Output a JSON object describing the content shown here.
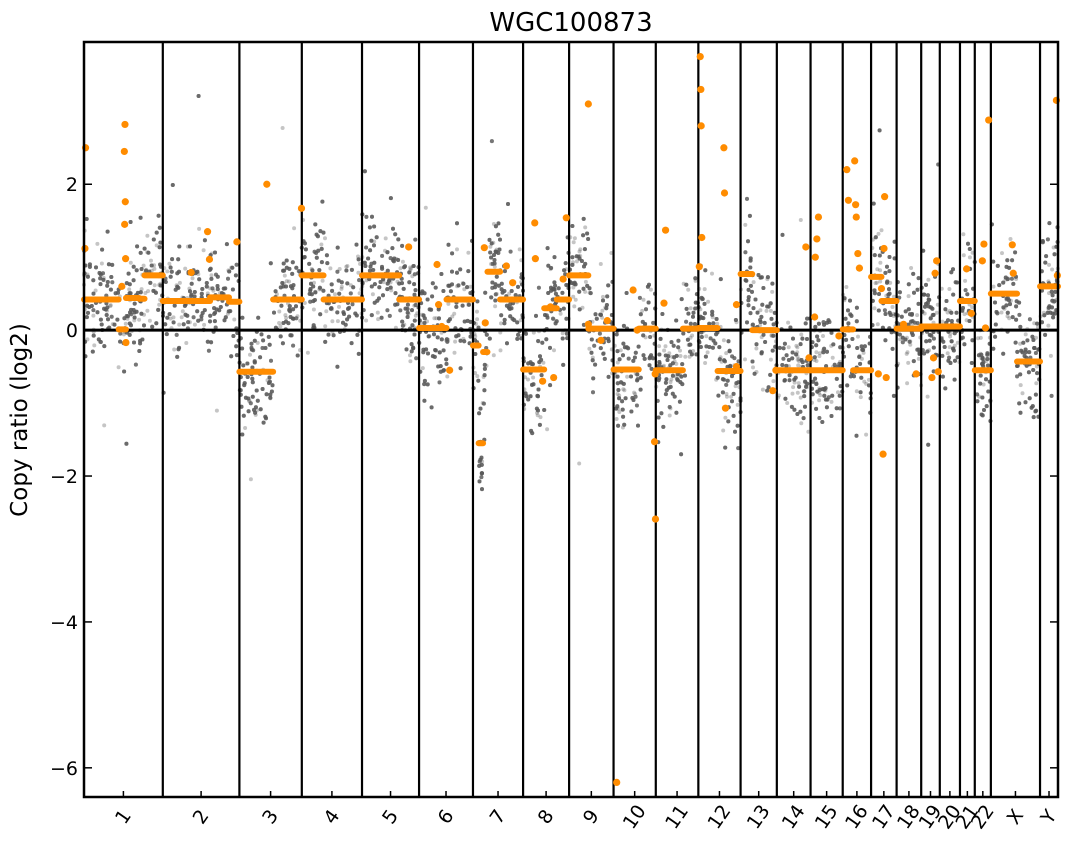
{
  "colors": {
    "bins": "#5a5a5a",
    "segments": "#ff8c00",
    "frame": "#000000",
    "background": "#ffffff"
  },
  "chart_data": {
    "type": "scatter",
    "title": "WGC100873",
    "xlabel": "",
    "ylabel": "Copy ratio (log2)",
    "ylim": [
      -6.4,
      3.95
    ],
    "yticks": [
      2,
      0,
      -2,
      -4,
      -6
    ],
    "ytick_labels": [
      "2",
      "0",
      "−2",
      "−4",
      "−6"
    ],
    "reference_line": 0,
    "chromosomes": [
      {
        "label": "1",
        "start": 0,
        "end": 250
      },
      {
        "label": "2",
        "start": 250,
        "end": 493
      },
      {
        "label": "3",
        "start": 493,
        "end": 691
      },
      {
        "label": "4",
        "start": 691,
        "end": 882
      },
      {
        "label": "5",
        "start": 882,
        "end": 1063
      },
      {
        "label": "6",
        "start": 1063,
        "end": 1234
      },
      {
        "label": "7",
        "start": 1234,
        "end": 1393
      },
      {
        "label": "8",
        "start": 1393,
        "end": 1539
      },
      {
        "label": "9",
        "start": 1539,
        "end": 1680
      },
      {
        "label": "10",
        "start": 1680,
        "end": 1814
      },
      {
        "label": "11",
        "start": 1814,
        "end": 1949
      },
      {
        "label": "12",
        "start": 1949,
        "end": 2083
      },
      {
        "label": "13",
        "start": 2083,
        "end": 2198
      },
      {
        "label": "14",
        "start": 2198,
        "end": 2305
      },
      {
        "label": "15",
        "start": 2305,
        "end": 2407
      },
      {
        "label": "16",
        "start": 2407,
        "end": 2497
      },
      {
        "label": "17",
        "start": 2497,
        "end": 2578
      },
      {
        "label": "18",
        "start": 2578,
        "end": 2656
      },
      {
        "label": "19",
        "start": 2656,
        "end": 2715
      },
      {
        "label": "20",
        "start": 2715,
        "end": 2779
      },
      {
        "label": "21",
        "start": 2779,
        "end": 2826
      },
      {
        "label": "22",
        "start": 2826,
        "end": 2877
      },
      {
        "label": "X",
        "start": 2877,
        "end": 3033
      },
      {
        "label": "Y",
        "start": 3033,
        "end": 3090
      }
    ],
    "series": [
      {
        "name": "",
        "role": "segments",
        "segments": [
          {
            "x0": 0,
            "x1": 110,
            "y": 0.42
          },
          {
            "x0": 110,
            "x1": 133,
            "y": 0.01
          },
          {
            "x0": 133,
            "x1": 175,
            "y": 0.44
          },
          {
            "x0": 175,
            "x1": 192,
            "y": 0.43
          },
          {
            "x0": 192,
            "x1": 250,
            "y": 0.75
          },
          {
            "x0": 250,
            "x1": 400,
            "y": 0.4
          },
          {
            "x0": 400,
            "x1": 460,
            "y": 0.45
          },
          {
            "x0": 460,
            "x1": 493,
            "y": 0.39
          },
          {
            "x0": 493,
            "x1": 600,
            "y": -0.57
          },
          {
            "x0": 600,
            "x1": 691,
            "y": 0.42
          },
          {
            "x0": 691,
            "x1": 760,
            "y": 0.75
          },
          {
            "x0": 760,
            "x1": 882,
            "y": 0.42
          },
          {
            "x0": 882,
            "x1": 1000,
            "y": 0.75
          },
          {
            "x0": 1000,
            "x1": 1063,
            "y": 0.42
          },
          {
            "x0": 1063,
            "x1": 1150,
            "y": 0.03
          },
          {
            "x0": 1150,
            "x1": 1234,
            "y": 0.42
          },
          {
            "x0": 1234,
            "x1": 1252,
            "y": -0.21
          },
          {
            "x0": 1252,
            "x1": 1266,
            "y": -1.55
          },
          {
            "x0": 1266,
            "x1": 1280,
            "y": -0.3
          },
          {
            "x0": 1280,
            "x1": 1320,
            "y": 0.8
          },
          {
            "x0": 1320,
            "x1": 1393,
            "y": 0.42
          },
          {
            "x0": 1393,
            "x1": 1460,
            "y": -0.54
          },
          {
            "x0": 1460,
            "x1": 1500,
            "y": 0.3
          },
          {
            "x0": 1500,
            "x1": 1539,
            "y": 0.42
          },
          {
            "x0": 1539,
            "x1": 1600,
            "y": 0.75
          },
          {
            "x0": 1600,
            "x1": 1680,
            "y": 0.02
          },
          {
            "x0": 1680,
            "x1": 1760,
            "y": -0.54
          },
          {
            "x0": 1760,
            "x1": 1814,
            "y": 0.02
          },
          {
            "x0": 1814,
            "x1": 1900,
            "y": -0.55
          },
          {
            "x0": 1900,
            "x1": 1949,
            "y": 0.02
          },
          {
            "x0": 1949,
            "x1": 2010,
            "y": 0.03
          },
          {
            "x0": 2010,
            "x1": 2083,
            "y": -0.56
          },
          {
            "x0": 2083,
            "x1": 2120,
            "y": 0.77
          },
          {
            "x0": 2120,
            "x1": 2198,
            "y": 0.0
          },
          {
            "x0": 2198,
            "x1": 2305,
            "y": -0.55
          },
          {
            "x0": 2305,
            "x1": 2407,
            "y": -0.55
          },
          {
            "x0": 2407,
            "x1": 2440,
            "y": 0.01
          },
          {
            "x0": 2440,
            "x1": 2497,
            "y": -0.55
          },
          {
            "x0": 2497,
            "x1": 2530,
            "y": 0.73
          },
          {
            "x0": 2530,
            "x1": 2578,
            "y": 0.4
          },
          {
            "x0": 2578,
            "x1": 2656,
            "y": 0.02
          },
          {
            "x0": 2656,
            "x1": 2715,
            "y": 0.05
          },
          {
            "x0": 2715,
            "x1": 2779,
            "y": 0.05
          },
          {
            "x0": 2779,
            "x1": 2826,
            "y": 0.4
          },
          {
            "x0": 2826,
            "x1": 2877,
            "y": -0.55
          },
          {
            "x0": 2877,
            "x1": 2960,
            "y": 0.5
          },
          {
            "x0": 2960,
            "x1": 3033,
            "y": -0.43
          },
          {
            "x0": 3033,
            "x1": 3090,
            "y": 0.6
          }
        ],
        "outliers": [
          {
            "x": 5,
            "y": 2.5
          },
          {
            "x": 3,
            "y": 1.12
          },
          {
            "x": 130,
            "y": 2.82
          },
          {
            "x": 128,
            "y": 2.45
          },
          {
            "x": 131,
            "y": 1.76
          },
          {
            "x": 129,
            "y": 1.45
          },
          {
            "x": 132,
            "y": 0.98
          },
          {
            "x": 120,
            "y": 0.6
          },
          {
            "x": 133,
            "y": -0.17
          },
          {
            "x": 340,
            "y": 0.79
          },
          {
            "x": 392,
            "y": 1.35
          },
          {
            "x": 398,
            "y": 0.97
          },
          {
            "x": 485,
            "y": 1.21
          },
          {
            "x": 580,
            "y": 2.0
          },
          {
            "x": 690,
            "y": 1.67
          },
          {
            "x": 1030,
            "y": 1.14
          },
          {
            "x": 1120,
            "y": 0.9
          },
          {
            "x": 1125,
            "y": 0.35
          },
          {
            "x": 1135,
            "y": 0.05
          },
          {
            "x": 1160,
            "y": -0.55
          },
          {
            "x": 1270,
            "y": 1.13
          },
          {
            "x": 1273,
            "y": 0.1
          },
          {
            "x": 1340,
            "y": 0.88
          },
          {
            "x": 1360,
            "y": 0.65
          },
          {
            "x": 1430,
            "y": 1.47
          },
          {
            "x": 1432,
            "y": 0.98
          },
          {
            "x": 1455,
            "y": -0.7
          },
          {
            "x": 1490,
            "y": -0.65
          },
          {
            "x": 1480,
            "y": 0.32
          },
          {
            "x": 1600,
            "y": 3.1
          },
          {
            "x": 1520,
            "y": 0.7
          },
          {
            "x": 1530,
            "y": 1.54
          },
          {
            "x": 1640,
            "y": -0.14
          },
          {
            "x": 1600,
            "y": 0.08
          },
          {
            "x": 1660,
            "y": 0.13
          },
          {
            "x": 1690,
            "y": -6.2
          },
          {
            "x": 1742,
            "y": 0.55
          },
          {
            "x": 1755,
            "y": 0.0
          },
          {
            "x": 1810,
            "y": -1.53
          },
          {
            "x": 1813,
            "y": -2.59
          },
          {
            "x": 1812,
            "y": -0.6
          },
          {
            "x": 1845,
            "y": 1.37
          },
          {
            "x": 1840,
            "y": 0.37
          },
          {
            "x": 1955,
            "y": 3.75
          },
          {
            "x": 1957,
            "y": 3.3
          },
          {
            "x": 1958,
            "y": 2.8
          },
          {
            "x": 1960,
            "y": 1.27
          },
          {
            "x": 1952,
            "y": 0.87
          },
          {
            "x": 2030,
            "y": 2.5
          },
          {
            "x": 2032,
            "y": 1.88
          },
          {
            "x": 2035,
            "y": -1.07
          },
          {
            "x": 2070,
            "y": 0.35
          },
          {
            "x": 2070,
            "y": -0.5
          },
          {
            "x": 2185,
            "y": -0.83
          },
          {
            "x": 2195,
            "y": -0.55
          },
          {
            "x": 2290,
            "y": 1.14
          },
          {
            "x": 2300,
            "y": -0.38
          },
          {
            "x": 2330,
            "y": 1.55
          },
          {
            "x": 2325,
            "y": 1.25
          },
          {
            "x": 2320,
            "y": 1.0
          },
          {
            "x": 2318,
            "y": 0.18
          },
          {
            "x": 2395,
            "y": -0.08
          },
          {
            "x": 2420,
            "y": 2.2
          },
          {
            "x": 2425,
            "y": 1.78
          },
          {
            "x": 2445,
            "y": 2.32
          },
          {
            "x": 2448,
            "y": 1.72
          },
          {
            "x": 2450,
            "y": 1.55
          },
          {
            "x": 2455,
            "y": 1.05
          },
          {
            "x": 2460,
            "y": 0.85
          },
          {
            "x": 2540,
            "y": 1.83
          },
          {
            "x": 2538,
            "y": 1.12
          },
          {
            "x": 2535,
            "y": -1.7
          },
          {
            "x": 2530,
            "y": 0.57
          },
          {
            "x": 2520,
            "y": -0.6
          },
          {
            "x": 2545,
            "y": -0.65
          },
          {
            "x": 2600,
            "y": 0.08
          },
          {
            "x": 2640,
            "y": -0.6
          },
          {
            "x": 2700,
            "y": 0.78
          },
          {
            "x": 2705,
            "y": 0.95
          },
          {
            "x": 2695,
            "y": -0.38
          },
          {
            "x": 2710,
            "y": -0.57
          },
          {
            "x": 2690,
            "y": -0.65
          },
          {
            "x": 2800,
            "y": 0.84
          },
          {
            "x": 2815,
            "y": 0.23
          },
          {
            "x": 2855,
            "y": 1.18
          },
          {
            "x": 2850,
            "y": 0.95
          },
          {
            "x": 2870,
            "y": 2.88
          },
          {
            "x": 2860,
            "y": 0.03
          },
          {
            "x": 2945,
            "y": 1.17
          },
          {
            "x": 2948,
            "y": 0.78
          },
          {
            "x": 3085,
            "y": 3.15
          },
          {
            "x": 3088,
            "y": 0.75
          }
        ]
      }
    ]
  }
}
